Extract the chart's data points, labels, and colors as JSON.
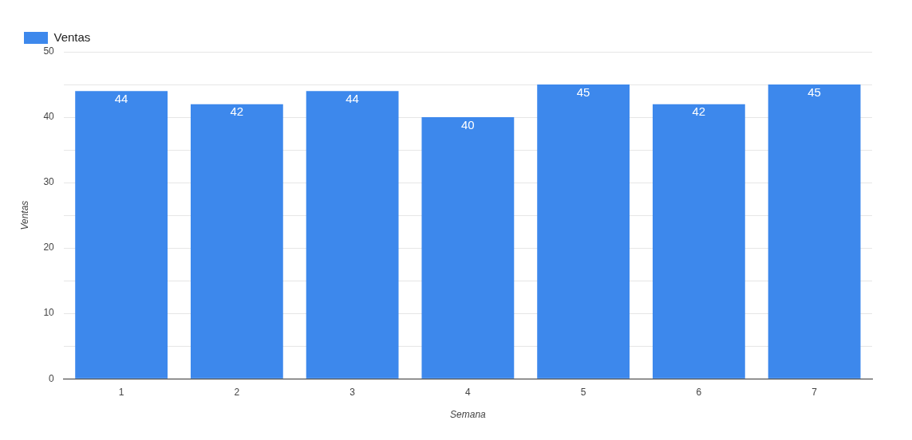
{
  "chart_data": {
    "type": "bar",
    "xlabel": "Semana",
    "ylabel": "Ventas",
    "categories": [
      "1",
      "2",
      "3",
      "4",
      "5",
      "6",
      "7"
    ],
    "series": [
      {
        "name": "Ventas",
        "color": "#3d88ec",
        "values": [
          44,
          42,
          44,
          40,
          45,
          42,
          45
        ]
      }
    ],
    "ylim": [
      0,
      50
    ],
    "yticks": [
      0,
      {
        "value": 5,
        "label": null
      },
      10,
      {
        "value": 15,
        "label": null
      },
      20,
      {
        "value": 25,
        "label": null
      },
      30,
      {
        "value": 35,
        "label": null
      },
      40,
      {
        "value": 45,
        "label": null
      },
      50
    ],
    "grid": "y",
    "legend": "top left",
    "data_labels": true
  }
}
